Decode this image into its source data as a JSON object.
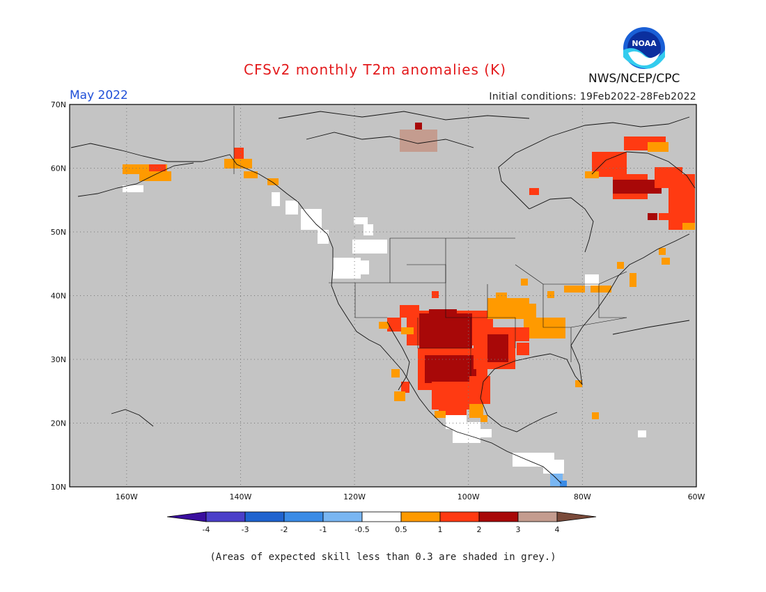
{
  "title": "CFSv2 monthly T2m anomalies (K)",
  "month": "May 2022",
  "initial_conditions": "Initial conditions: 19Feb2022-28Feb2022",
  "agency": "NWS/NCEP/CPC",
  "logo_text": "NOAA",
  "footnote": "(Areas of expected skill less than 0.3 are shaded in grey.)",
  "map": {
    "lon_range": [
      -170,
      -60
    ],
    "lat_range": [
      10,
      70
    ],
    "lat_ticks": [
      "70N",
      "60N",
      "50N",
      "40N",
      "30N",
      "20N",
      "10N"
    ],
    "lon_ticks": [
      "160W",
      "140W",
      "120W",
      "100W",
      "80W",
      "60W"
    ],
    "background_color": "#c4c4c4",
    "grid": "dotted"
  },
  "colorbar": {
    "labels": [
      "-4",
      "-3",
      "-2",
      "-1",
      "-0.5",
      "0.5",
      "1",
      "2",
      "3",
      "4"
    ],
    "colors": [
      "#3a0e9e",
      "#4b3fc9",
      "#1f63cf",
      "#3a8be6",
      "#79b6f2",
      "#ffffff",
      "#ff9a00",
      "#ff3a12",
      "#a80808",
      "#c49c8f",
      "#7a4a3a"
    ]
  }
}
